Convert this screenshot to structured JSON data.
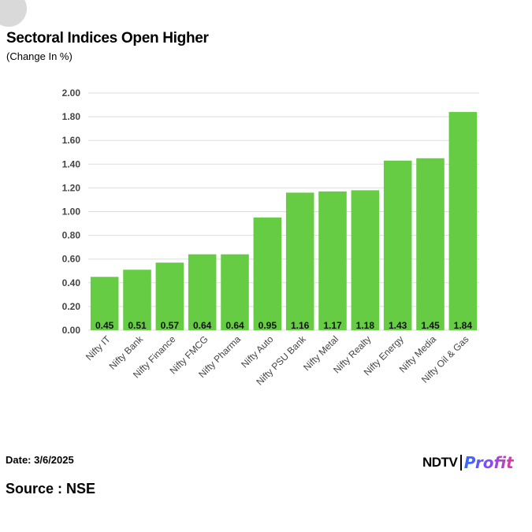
{
  "header": {
    "title": "Sectoral Indices Open Higher",
    "subtitle": "(Change In %)"
  },
  "footer": {
    "date": "Date: 3/6/2025",
    "source": "Source : NSE"
  },
  "logo": {
    "ndtv": "NDTV",
    "profit": "Profit"
  },
  "colors": {
    "bar": "#66cc44",
    "grid": "#dddddd",
    "axis_text": "#444444"
  },
  "chart_data": {
    "type": "bar",
    "title": "Sectoral Indices Open Higher",
    "subtitle": "(Change In %)",
    "categories": [
      "Nifty IT",
      "Nifty Bank",
      "Nifty Finance",
      "Nifty FMCG",
      "Nifty Pharma",
      "Nifty Auto",
      "Nifty PSU Bank",
      "Nifty Metal",
      "Nifty Realty",
      "Nifty Energy",
      "Nifty Media",
      "Nifty Oil & Gas"
    ],
    "values": [
      0.45,
      0.51,
      0.57,
      0.64,
      0.64,
      0.95,
      1.16,
      1.17,
      1.18,
      1.43,
      1.45,
      1.84
    ],
    "data_labels": [
      "0.45",
      "0.51",
      "0.57",
      "0.64",
      "0.64",
      "0.95",
      "1.16",
      "1.17",
      "1.18",
      "1.43",
      "1.45",
      "1.84"
    ],
    "ylim": [
      0,
      2.0
    ],
    "yticks": [
      "0.00",
      "0.20",
      "0.40",
      "0.60",
      "0.80",
      "1.00",
      "1.20",
      "1.40",
      "1.60",
      "1.80",
      "2.00"
    ],
    "grid": true,
    "legend": "none"
  }
}
